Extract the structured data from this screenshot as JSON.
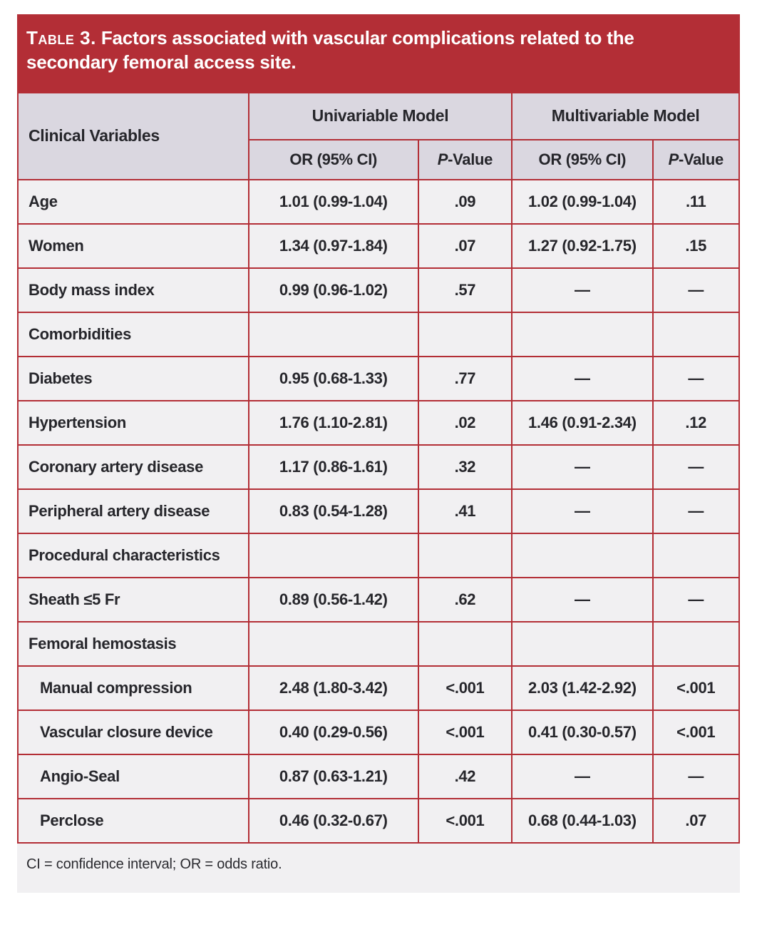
{
  "colors": {
    "accent_red": "#b32e36",
    "header_row_bg": "#dad7e0",
    "body_row_bg": "#f1f0f2",
    "title_text": "#ffffff",
    "body_text": "#26262b"
  },
  "title": {
    "label": "Table 3.",
    "text": " Factors associated with vascular complications related to the secondary femoral access site."
  },
  "table": {
    "col1_header": "Clinical Variables",
    "group_headers": [
      "Univariable Model",
      "Multivariable Model"
    ],
    "sub_headers": {
      "or": "OR (95% CI)",
      "p_italic": "P",
      "p_rest": "-Value"
    },
    "rows": [
      {
        "label": "Age",
        "uni_or": "1.01 (0.99-1.04)",
        "uni_p": ".09",
        "multi_or": "1.02 (0.99-1.04)",
        "multi_p": ".11"
      },
      {
        "label": "Women",
        "uni_or": "1.34 (0.97-1.84)",
        "uni_p": ".07",
        "multi_or": "1.27 (0.92-1.75)",
        "multi_p": ".15"
      },
      {
        "label": "Body mass index",
        "uni_or": "0.99 (0.96-1.02)",
        "uni_p": ".57",
        "multi_or": "—",
        "multi_p": "—"
      },
      {
        "label": "Comorbidities",
        "uni_or": "",
        "uni_p": "",
        "multi_or": "",
        "multi_p": ""
      },
      {
        "label": "Diabetes",
        "uni_or": "0.95 (0.68-1.33)",
        "uni_p": ".77",
        "multi_or": "—",
        "multi_p": "—"
      },
      {
        "label": "Hypertension",
        "uni_or": "1.76 (1.10-2.81)",
        "uni_p": ".02",
        "multi_or": "1.46 (0.91-2.34)",
        "multi_p": ".12"
      },
      {
        "label": "Coronary artery disease",
        "uni_or": "1.17 (0.86-1.61)",
        "uni_p": ".32",
        "multi_or": "—",
        "multi_p": "—"
      },
      {
        "label": "Peripheral artery disease",
        "uni_or": "0.83 (0.54-1.28)",
        "uni_p": ".41",
        "multi_or": "—",
        "multi_p": "—"
      },
      {
        "label": "Procedural characteristics",
        "uni_or": "",
        "uni_p": "",
        "multi_or": "",
        "multi_p": ""
      },
      {
        "label": "Sheath ≤5 Fr",
        "uni_or": "0.89 (0.56-1.42)",
        "uni_p": ".62",
        "multi_or": "—",
        "multi_p": "—"
      },
      {
        "label": "Femoral hemostasis",
        "uni_or": "",
        "uni_p": "",
        "multi_or": "",
        "multi_p": ""
      },
      {
        "label": "Manual compression",
        "uni_or": "2.48 (1.80-3.42)",
        "uni_p": "<.001",
        "multi_or": "2.03 (1.42-2.92)",
        "multi_p": "<.001"
      },
      {
        "label": "Vascular closure device",
        "uni_or": "0.40 (0.29-0.56)",
        "uni_p": "<.001",
        "multi_or": "0.41 (0.30-0.57)",
        "multi_p": "<.001"
      },
      {
        "label": "Angio-Seal",
        "uni_or": "0.87 (0.63-1.21)",
        "uni_p": ".42",
        "multi_or": "—",
        "multi_p": "—"
      },
      {
        "label": "Perclose",
        "uni_or": "0.46 (0.32-0.67)",
        "uni_p": "<.001",
        "multi_or": "0.68 (0.44-1.03)",
        "multi_p": ".07"
      }
    ]
  },
  "footnote": {
    "text": "CI = confidence interval; OR = odds ratio."
  }
}
